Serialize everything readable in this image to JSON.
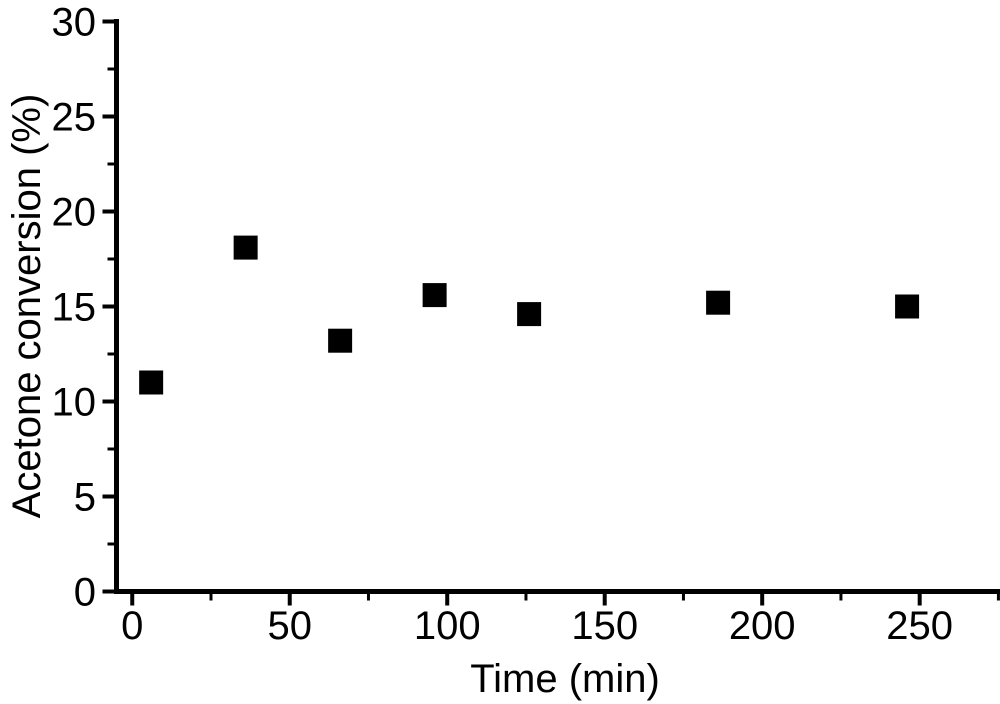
{
  "figure": {
    "background": "#ffffff"
  },
  "chart_data": {
    "type": "scatter",
    "title": "",
    "xlabel": "Time (min)",
    "ylabel": "Acetone conversion (%)",
    "series": [
      {
        "name": "acetone conversion",
        "marker": "filled-square",
        "color": "#000000",
        "points": [
          {
            "x": 6,
            "y": 11.0
          },
          {
            "x": 36,
            "y": 18.1
          },
          {
            "x": 66,
            "y": 13.2
          },
          {
            "x": 96,
            "y": 15.6
          },
          {
            "x": 126,
            "y": 14.6
          },
          {
            "x": 186,
            "y": 15.2
          },
          {
            "x": 246,
            "y": 15.0
          }
        ]
      }
    ],
    "xlim": [
      -5,
      275.5
    ],
    "ylim": [
      0,
      30
    ],
    "xticks": [
      0,
      50,
      100,
      150,
      200,
      250
    ],
    "yticks": [
      0,
      5,
      10,
      15,
      20,
      25,
      30
    ],
    "x_minor_step": 25,
    "y_minor_step": 2.5,
    "grid": false,
    "legend": "none",
    "axis_color": "#000000",
    "text_color": "#000000",
    "marker_size_px": 24
  }
}
